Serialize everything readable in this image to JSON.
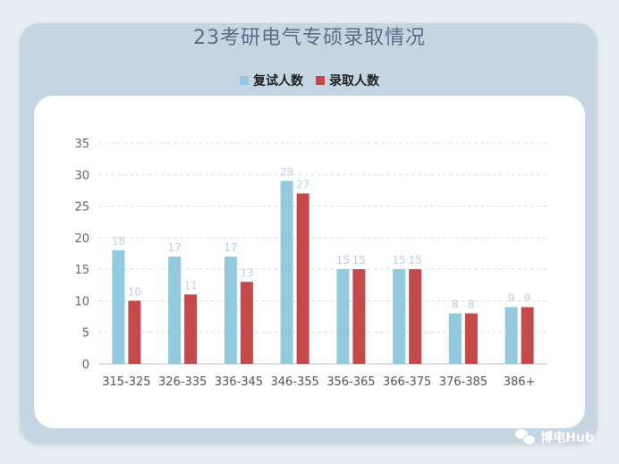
{
  "chart_data": {
    "type": "bar",
    "title": "23考研电气专硕录取情况",
    "categories": [
      "315-325",
      "326-335",
      "336-345",
      "346-355",
      "356-365",
      "366-375",
      "376-385",
      "386+"
    ],
    "series": [
      {
        "name": "复试人数",
        "values": [
          18,
          17,
          17,
          29,
          15,
          15,
          8,
          9
        ],
        "color": "#92c9dc"
      },
      {
        "name": "录取人数",
        "values": [
          10,
          11,
          13,
          27,
          15,
          15,
          8,
          9
        ],
        "color": "#c4494a"
      }
    ],
    "ylim": [
      0,
      35
    ],
    "yticks": [
      "0",
      "5",
      "10",
      "15",
      "20",
      "25",
      "30",
      "35"
    ],
    "grid": true,
    "legend_position": "top-center"
  },
  "watermark": {
    "text": "博电Hub",
    "icon": "wechat-icon"
  },
  "colors": {
    "frame": "#c5d6e2",
    "title": "#5a6e86",
    "data_label": "#b9cfe6",
    "grid": "#d9dde2"
  }
}
